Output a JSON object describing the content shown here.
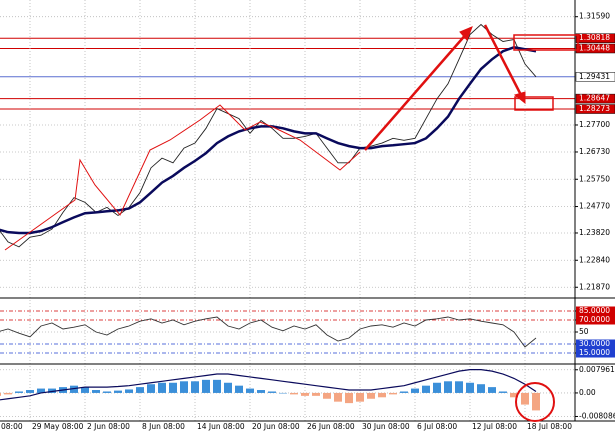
{
  "chart_data": [
    {
      "type": "line",
      "categories": [
        "08:00",
        null,
        null,
        null,
        null,
        "29 May 08:00",
        null,
        null,
        null,
        null,
        "2 Jun 08:00",
        null,
        null,
        null,
        null,
        "8 Jun 08:00",
        null,
        null,
        null,
        null,
        "14 Jun 08:00",
        null,
        null,
        null,
        null,
        "20 Jun 08:00",
        null,
        null,
        null,
        null,
        "26 Jun 08:00",
        null,
        null,
        null,
        null,
        "30 Jun 08:00",
        null,
        null,
        null,
        null,
        "6 Jul 08:00",
        null,
        null,
        null,
        null,
        "12 Jul 08:00",
        null,
        null,
        null,
        null,
        "18 Jul 08:00",
        null
      ],
      "series": [
        {
          "color": "#222222",
          "values": [
            1.2385,
            1.2421,
            1.2403,
            1.235,
            1.2332,
            1.2367,
            1.2374,
            1.2396,
            1.2456,
            1.2509,
            1.2492,
            1.2456,
            1.2474,
            1.2445,
            1.2474,
            1.2527,
            1.2616,
            1.2651,
            1.2634,
            1.2687,
            1.2705,
            1.2758,
            1.2829,
            1.2811,
            1.2793,
            1.274,
            1.2786,
            1.2758,
            1.2722,
            1.2722,
            1.2729,
            1.274,
            1.2687,
            1.2634,
            1.2634,
            1.2687,
            1.2694,
            1.2705,
            1.2722,
            1.2715,
            1.2722,
            1.2793,
            1.2864,
            1.2918,
            1.3006,
            1.3095,
            1.3131,
            1.3095,
            1.307,
            1.3077,
            1.2989,
            1.2943
          ]
        },
        {
          "color": "#0a0a5c",
          "values": [
            1.2421,
            1.241,
            1.2396,
            1.2385,
            1.2382,
            1.2382,
            1.2389,
            1.2403,
            1.2421,
            1.2438,
            1.2453,
            1.2456,
            1.246,
            1.2463,
            1.247,
            1.2492,
            1.2527,
            1.2563,
            1.2587,
            1.2616,
            1.2641,
            1.2669,
            1.2705,
            1.2729,
            1.2747,
            1.2758,
            1.2765,
            1.2765,
            1.2758,
            1.2747,
            1.274,
            1.274,
            1.2722,
            1.2705,
            1.2694,
            1.2687,
            1.2687,
            1.2694,
            1.2697,
            1.2701,
            1.2705,
            1.2722,
            1.2758,
            1.28,
            1.2864,
            1.2918,
            1.2971,
            1.3006,
            1.3035,
            1.3049,
            1.3042,
            1.3035
          ]
        }
      ],
      "ylim": [
        1.2152,
        1.3219
      ],
      "yticks": [
        {
          "value": 1.3159,
          "label": "1.31590"
        },
        {
          "value": 1.277,
          "label": "1.27700"
        },
        {
          "value": 1.2673,
          "label": "1.26730"
        },
        {
          "value": 1.2575,
          "label": "1.25750"
        },
        {
          "value": 1.2477,
          "label": "1.24770"
        },
        {
          "value": 1.2382,
          "label": "1.23820"
        },
        {
          "value": 1.2284,
          "label": "1.22840"
        },
        {
          "value": 1.2187,
          "label": "1.21870"
        }
      ],
      "hlines": [
        {
          "value": 1.30818,
          "color": "#d00000"
        },
        {
          "value": 1.30448,
          "color": "#d00000"
        },
        {
          "value": 1.29431,
          "color": "#5a6fd0"
        },
        {
          "value": 1.28647,
          "color": "#d00000"
        },
        {
          "value": 1.28273,
          "color": "#d00000"
        }
      ],
      "grid": true
    },
    {
      "type": "line",
      "series": [
        {
          "color": "#333333",
          "values": [
            45,
            38,
            50,
            55,
            48,
            42,
            60,
            65,
            55,
            58,
            62,
            50,
            45,
            55,
            60,
            68,
            72,
            65,
            70,
            62,
            68,
            72,
            75,
            60,
            55,
            65,
            70,
            58,
            52,
            60,
            55,
            62,
            45,
            35,
            40,
            55,
            60,
            62,
            58,
            65,
            60,
            70,
            72,
            75,
            70,
            72,
            68,
            65,
            62,
            50,
            25,
            40
          ]
        }
      ],
      "ylim": [
        0,
        100
      ],
      "yticks": [
        {
          "value": 85,
          "label": "85.0000",
          "color": "#d00000"
        },
        {
          "value": 70,
          "label": "70.0000",
          "color": "#d00000"
        },
        50,
        {
          "value": 30,
          "label": "30.0000",
          "color": "#2040d0"
        },
        {
          "value": 15,
          "label": "15.0000",
          "color": "#2040d0"
        }
      ]
    },
    {
      "type": "bar",
      "series": [
        {
          "type": "bar",
          "color": "#3b8fd9",
          "neg_color": "#f4a582",
          "values": [
            -0.001,
            -0.0015,
            -0.001,
            -0.0005,
            0.0005,
            0.001,
            0.0015,
            0.0015,
            0.002,
            0.0025,
            0.002,
            0.001,
            0.0005,
            0.0008,
            0.0012,
            0.002,
            0.003,
            0.0035,
            0.0035,
            0.004,
            0.004,
            0.0045,
            0.0045,
            0.0035,
            0.0025,
            0.0015,
            0.001,
            0.0005,
            0,
            -0.0005,
            -0.001,
            -0.001,
            -0.002,
            -0.003,
            -0.0035,
            -0.003,
            -0.002,
            -0.0015,
            -0.0005,
            0.0005,
            0.0015,
            0.0025,
            0.0035,
            0.004,
            0.004,
            0.0035,
            0.003,
            0.002,
            0.0005,
            -0.0015,
            -0.004,
            -0.006
          ]
        },
        {
          "type": "line",
          "color": "#0a0a5c",
          "values": [
            -0.003,
            -0.003,
            -0.0025,
            -0.002,
            -0.0015,
            -0.001,
            0,
            0.0005,
            0.001,
            0.0015,
            0.002,
            0.002,
            0.002,
            0.0022,
            0.0025,
            0.003,
            0.0035,
            0.004,
            0.0045,
            0.005,
            0.0055,
            0.006,
            0.0065,
            0.0065,
            0.006,
            0.0055,
            0.005,
            0.0045,
            0.004,
            0.0035,
            0.003,
            0.0025,
            0.002,
            0.0015,
            0.001,
            0.001,
            0.001,
            0.0015,
            0.002,
            0.0025,
            0.0035,
            0.0045,
            0.0055,
            0.0065,
            0.0075,
            0.008,
            0.008,
            0.0075,
            0.0065,
            0.005,
            0.003,
            0.0005
          ]
        }
      ],
      "ylim": [
        -0.0093,
        0.0096
      ],
      "yticks": [
        {
          "value": 0.0079617,
          "label": "0.0079617"
        },
        {
          "value": 0,
          "label": "0.00"
        },
        {
          "value": -0.008086,
          "label": "-0.008086"
        }
      ]
    }
  ]
}
